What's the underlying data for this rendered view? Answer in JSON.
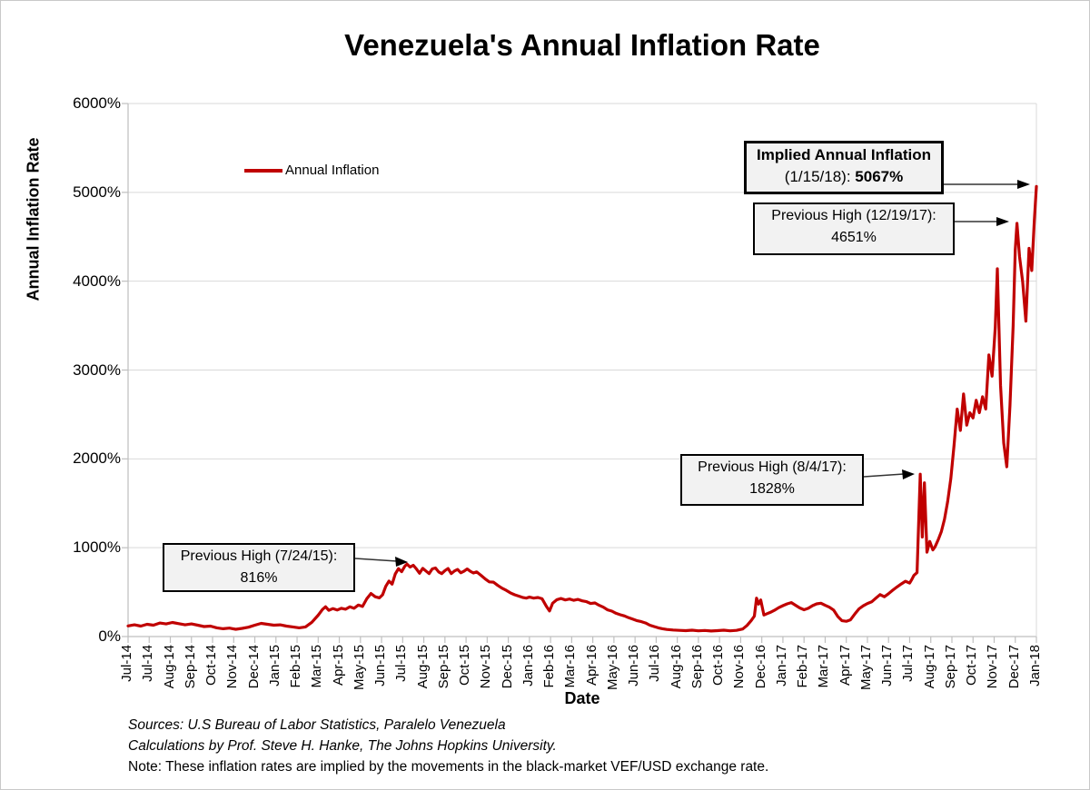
{
  "title": "Venezuela's Annual Inflation Rate",
  "legend": {
    "series_label": "Annual Inflation"
  },
  "footnotes": {
    "sources": "Sources: U.S Bureau of Labor Statistics, Paralelo Venezuela",
    "calculations": "Calculations by Prof. Steve H. Hanke, The Johns Hopkins University.",
    "note": "Note: These inflation rates are implied by the movements in the black-market VEF/USD exchange rate."
  },
  "annotations": {
    "implied": {
      "line1": "Implied Annual Inflation",
      "line2_prefix": "(1/15/18): ",
      "line2_value": "5067%"
    },
    "prev_dec17": {
      "line1": "Previous High (12/19/17):",
      "line2": "4651%"
    },
    "prev_aug17": {
      "line1": "Previous High (8/4/17):",
      "line2": "1828%"
    },
    "prev_jul15": {
      "line1": "Previous High (7/24/15):",
      "line2": "816%"
    }
  },
  "colors": {
    "line": "#C00000",
    "grid": "#D9D9D9",
    "axis": "#BFBFBF",
    "arrow": "#333333",
    "annotation_fill": "#F2F2F2",
    "annotation_border": "#000000",
    "text": "#000000"
  },
  "chart_data": {
    "type": "line",
    "title": "Venezuela's Annual Inflation Rate",
    "xlabel": "Date",
    "ylabel": "Annual Inflation Rate",
    "ylim": [
      0,
      6000
    ],
    "y_unit": "percent",
    "grid": "horizontal",
    "legend_position": "upper-left-inside",
    "y_axis": {
      "tick_labels": [
        "0%",
        "1000%",
        "2000%",
        "3000%",
        "4000%",
        "5000%",
        "6000%"
      ],
      "tick_values": [
        0,
        1000,
        2000,
        3000,
        4000,
        5000,
        6000
      ]
    },
    "x_axis": {
      "tick_labels": [
        "Jul-14",
        "Jul-14",
        "Aug-14",
        "Sep-14",
        "Oct-14",
        "Nov-14",
        "Dec-14",
        "Jan-15",
        "Feb-15",
        "Mar-15",
        "Apr-15",
        "May-15",
        "Jun-15",
        "Jul-15",
        "Aug-15",
        "Sep-15",
        "Oct-15",
        "Nov-15",
        "Dec-15",
        "Jan-16",
        "Feb-16",
        "Mar-16",
        "Apr-16",
        "May-16",
        "Jun-16",
        "Jul-16",
        "Aug-16",
        "Sep-16",
        "Oct-16",
        "Nov-16",
        "Dec-16",
        "Jan-17",
        "Feb-17",
        "Mar-17",
        "Apr-17",
        "May-17",
        "Jun-17",
        "Jul-17",
        "Aug-17",
        "Sep-17",
        "Oct-17",
        "Nov-17",
        "Dec-17",
        "Jan-18"
      ],
      "note": "monthly ticks, labels rotated 90 degrees"
    },
    "key_points": [
      {
        "label": "Previous High",
        "date": "7/24/15",
        "value_pct": 816
      },
      {
        "label": "Previous High",
        "date": "8/4/17",
        "value_pct": 1828
      },
      {
        "label": "Previous High",
        "date": "12/19/17",
        "value_pct": 4651
      },
      {
        "label": "Implied Annual Inflation",
        "date": "1/15/18",
        "value_pct": 5067
      }
    ],
    "series": [
      {
        "name": "Annual Inflation",
        "color": "#C00000",
        "x_unit": "axis position in months from first tick (Jul-14 = 0, Jan-18 = 43)",
        "points": [
          [
            0,
            120
          ],
          [
            0.3,
            132
          ],
          [
            0.6,
            118
          ],
          [
            0.9,
            138
          ],
          [
            1.2,
            128
          ],
          [
            1.5,
            152
          ],
          [
            1.8,
            142
          ],
          [
            2.1,
            158
          ],
          [
            2.4,
            145
          ],
          [
            2.7,
            132
          ],
          [
            3,
            142
          ],
          [
            3.3,
            128
          ],
          [
            3.6,
            112
          ],
          [
            3.9,
            118
          ],
          [
            4.2,
            98
          ],
          [
            4.5,
            88
          ],
          [
            4.8,
            95
          ],
          [
            5.1,
            82
          ],
          [
            5.4,
            92
          ],
          [
            5.7,
            105
          ],
          [
            6,
            128
          ],
          [
            6.3,
            148
          ],
          [
            6.6,
            138
          ],
          [
            6.9,
            128
          ],
          [
            7.2,
            132
          ],
          [
            7.5,
            118
          ],
          [
            7.8,
            108
          ],
          [
            8.1,
            98
          ],
          [
            8.4,
            108
          ],
          [
            8.7,
            160
          ],
          [
            9,
            240
          ],
          [
            9.2,
            305
          ],
          [
            9.35,
            335
          ],
          [
            9.5,
            295
          ],
          [
            9.7,
            315
          ],
          [
            9.9,
            298
          ],
          [
            10.1,
            318
          ],
          [
            10.3,
            308
          ],
          [
            10.5,
            335
          ],
          [
            10.7,
            318
          ],
          [
            10.9,
            355
          ],
          [
            11.1,
            338
          ],
          [
            11.3,
            425
          ],
          [
            11.5,
            485
          ],
          [
            11.7,
            448
          ],
          [
            11.9,
            435
          ],
          [
            12.05,
            470
          ],
          [
            12.2,
            565
          ],
          [
            12.35,
            625
          ],
          [
            12.5,
            590
          ],
          [
            12.65,
            705
          ],
          [
            12.8,
            765
          ],
          [
            12.95,
            730
          ],
          [
            13.1,
            792
          ],
          [
            13.2,
            816
          ],
          [
            13.35,
            782
          ],
          [
            13.5,
            802
          ],
          [
            13.65,
            762
          ],
          [
            13.8,
            712
          ],
          [
            13.95,
            768
          ],
          [
            14.1,
            738
          ],
          [
            14.25,
            708
          ],
          [
            14.4,
            762
          ],
          [
            14.55,
            772
          ],
          [
            14.7,
            728
          ],
          [
            14.85,
            708
          ],
          [
            15,
            742
          ],
          [
            15.15,
            766
          ],
          [
            15.3,
            708
          ],
          [
            15.45,
            738
          ],
          [
            15.6,
            755
          ],
          [
            15.75,
            718
          ],
          [
            15.9,
            735
          ],
          [
            16.05,
            760
          ],
          [
            16.2,
            735
          ],
          [
            16.35,
            716
          ],
          [
            16.5,
            728
          ],
          [
            16.7,
            690
          ],
          [
            16.9,
            650
          ],
          [
            17.1,
            615
          ],
          [
            17.3,
            612
          ],
          [
            17.5,
            575
          ],
          [
            17.7,
            545
          ],
          [
            17.9,
            520
          ],
          [
            18.1,
            492
          ],
          [
            18.3,
            470
          ],
          [
            18.5,
            455
          ],
          [
            18.7,
            438
          ],
          [
            18.85,
            432
          ],
          [
            19,
            445
          ],
          [
            19.2,
            432
          ],
          [
            19.4,
            440
          ],
          [
            19.6,
            425
          ],
          [
            19.8,
            340
          ],
          [
            19.95,
            288
          ],
          [
            20.1,
            375
          ],
          [
            20.3,
            415
          ],
          [
            20.5,
            428
          ],
          [
            20.7,
            412
          ],
          [
            20.9,
            422
          ],
          [
            21.1,
            408
          ],
          [
            21.3,
            418
          ],
          [
            21.5,
            402
          ],
          [
            21.7,
            392
          ],
          [
            21.9,
            372
          ],
          [
            22.1,
            378
          ],
          [
            22.3,
            352
          ],
          [
            22.5,
            330
          ],
          [
            22.7,
            300
          ],
          [
            22.9,
            286
          ],
          [
            23.1,
            262
          ],
          [
            23.3,
            245
          ],
          [
            23.5,
            232
          ],
          [
            23.7,
            212
          ],
          [
            23.9,
            195
          ],
          [
            24.1,
            178
          ],
          [
            24.3,
            168
          ],
          [
            24.5,
            152
          ],
          [
            24.7,
            128
          ],
          [
            24.9,
            112
          ],
          [
            25.1,
            98
          ],
          [
            25.3,
            88
          ],
          [
            25.5,
            80
          ],
          [
            25.8,
            74
          ],
          [
            26.1,
            70
          ],
          [
            26.4,
            66
          ],
          [
            26.7,
            72
          ],
          [
            27,
            64
          ],
          [
            27.3,
            68
          ],
          [
            27.6,
            62
          ],
          [
            27.9,
            66
          ],
          [
            28.2,
            72
          ],
          [
            28.5,
            64
          ],
          [
            28.8,
            70
          ],
          [
            29.1,
            85
          ],
          [
            29.3,
            125
          ],
          [
            29.5,
            180
          ],
          [
            29.65,
            230
          ],
          [
            29.75,
            432
          ],
          [
            29.85,
            365
          ],
          [
            29.95,
            412
          ],
          [
            30.1,
            242
          ],
          [
            30.25,
            258
          ],
          [
            30.4,
            272
          ],
          [
            30.6,
            295
          ],
          [
            30.8,
            325
          ],
          [
            31,
            348
          ],
          [
            31.2,
            368
          ],
          [
            31.4,
            382
          ],
          [
            31.6,
            352
          ],
          [
            31.8,
            322
          ],
          [
            32,
            302
          ],
          [
            32.2,
            318
          ],
          [
            32.4,
            348
          ],
          [
            32.6,
            368
          ],
          [
            32.8,
            375
          ],
          [
            33,
            352
          ],
          [
            33.2,
            330
          ],
          [
            33.4,
            298
          ],
          [
            33.6,
            225
          ],
          [
            33.8,
            178
          ],
          [
            34,
            172
          ],
          [
            34.2,
            188
          ],
          [
            34.4,
            252
          ],
          [
            34.6,
            312
          ],
          [
            34.8,
            345
          ],
          [
            35,
            372
          ],
          [
            35.2,
            390
          ],
          [
            35.4,
            432
          ],
          [
            35.6,
            472
          ],
          [
            35.8,
            448
          ],
          [
            36,
            482
          ],
          [
            36.2,
            522
          ],
          [
            36.4,
            558
          ],
          [
            36.6,
            592
          ],
          [
            36.8,
            622
          ],
          [
            37,
            602
          ],
          [
            37.1,
            642
          ],
          [
            37.2,
            688
          ],
          [
            37.35,
            720
          ],
          [
            37.5,
            1828
          ],
          [
            37.6,
            1120
          ],
          [
            37.7,
            1730
          ],
          [
            37.82,
            950
          ],
          [
            37.95,
            1070
          ],
          [
            38.1,
            975
          ],
          [
            38.2,
            1010
          ],
          [
            38.35,
            1090
          ],
          [
            38.5,
            1180
          ],
          [
            38.65,
            1320
          ],
          [
            38.8,
            1520
          ],
          [
            38.95,
            1780
          ],
          [
            39.1,
            2150
          ],
          [
            39.25,
            2560
          ],
          [
            39.4,
            2320
          ],
          [
            39.55,
            2730
          ],
          [
            39.7,
            2380
          ],
          [
            39.85,
            2520
          ],
          [
            40,
            2460
          ],
          [
            40.15,
            2660
          ],
          [
            40.3,
            2520
          ],
          [
            40.45,
            2700
          ],
          [
            40.6,
            2560
          ],
          [
            40.75,
            3170
          ],
          [
            40.9,
            2930
          ],
          [
            41.05,
            3480
          ],
          [
            41.15,
            4140
          ],
          [
            41.3,
            2830
          ],
          [
            41.45,
            2180
          ],
          [
            41.6,
            1910
          ],
          [
            41.75,
            2600
          ],
          [
            41.9,
            3500
          ],
          [
            42,
            4350
          ],
          [
            42.08,
            4651
          ],
          [
            42.2,
            4280
          ],
          [
            42.35,
            3990
          ],
          [
            42.5,
            3550
          ],
          [
            42.65,
            4370
          ],
          [
            42.78,
            4120
          ],
          [
            42.9,
            4680
          ],
          [
            43,
            5067
          ]
        ]
      }
    ]
  }
}
